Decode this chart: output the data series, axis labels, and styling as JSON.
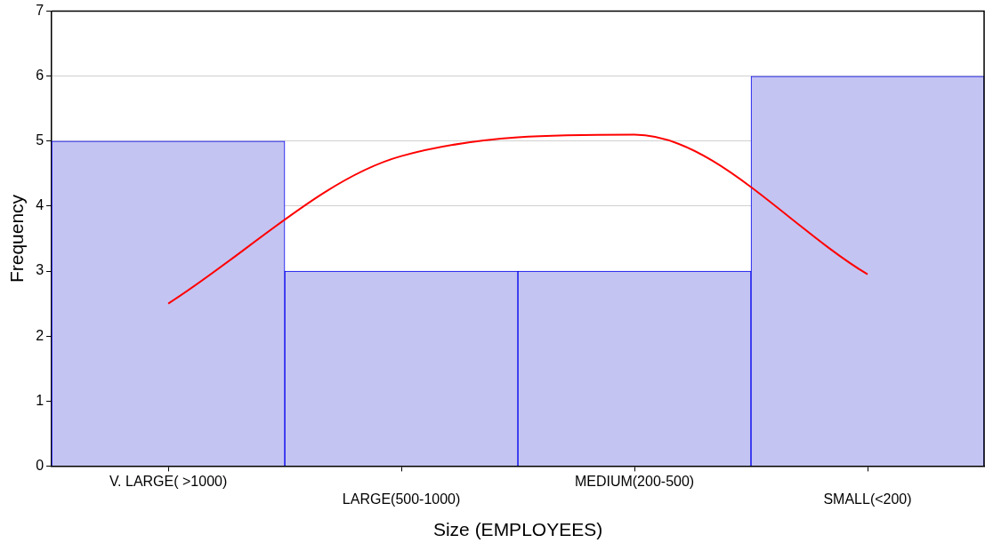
{
  "chart_data": {
    "type": "bar",
    "xlabel": "Size (EMPLOYEES)",
    "ylabel": "Frequency",
    "categories": [
      "V. LARGE( >1000)",
      "LARGE(500-1000)",
      "MEDIUM(200-500)",
      "SMALL(<200)"
    ],
    "ylim": [
      0,
      7
    ],
    "yticks": [
      0,
      1,
      2,
      3,
      4,
      5,
      6,
      7
    ],
    "grid": "y",
    "series": [
      {
        "color": "#c4c4f2",
        "values": [
          5,
          3,
          3,
          6
        ]
      },
      {
        "type": "line",
        "color": "#ff0000",
        "marker": "none",
        "values": [
          2.5,
          4.77,
          5.1,
          2.95
        ]
      }
    ]
  }
}
